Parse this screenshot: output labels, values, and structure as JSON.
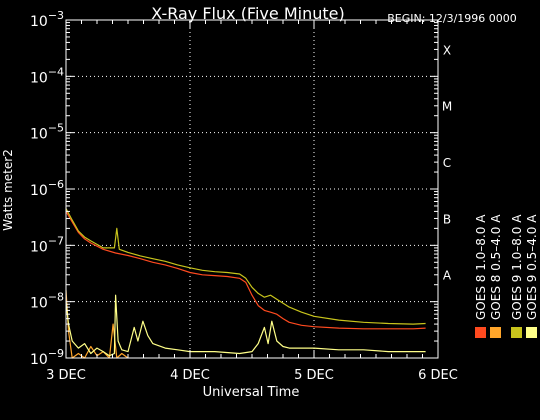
{
  "header": {
    "title": "X-Ray Flux (Five Minute)",
    "begin": "BEGIN: 12/3/1996 0000"
  },
  "colors": {
    "background": "#000000",
    "axes": "#ffffff",
    "goes8_long": "#ff4a1f",
    "goes8_short": "#ffa52a",
    "goes9_long": "#c8c41c",
    "goes9_short": "#ffff88"
  },
  "chart_data": {
    "type": "line",
    "title": "X-Ray Flux (Five Minute)",
    "xlabel": "Universal Time",
    "ylabel": "Watts meter2",
    "yscale": "log",
    "ylim": [
      1e-09,
      0.001
    ],
    "xlim": [
      3,
      6
    ],
    "x_ticks": [
      {
        "x": 3,
        "label": "3 DEC"
      },
      {
        "x": 4,
        "label": "4 DEC"
      },
      {
        "x": 5,
        "label": "5 DEC"
      },
      {
        "x": 6,
        "label": "6 DEC"
      }
    ],
    "y_ticks": [
      {
        "y": 1e-09,
        "base": "10",
        "exp": "−9"
      },
      {
        "y": 1e-08,
        "base": "10",
        "exp": "−8"
      },
      {
        "y": 1e-07,
        "base": "10",
        "exp": "−7"
      },
      {
        "y": 1e-06,
        "base": "10",
        "exp": "−6"
      },
      {
        "y": 1e-05,
        "base": "10",
        "exp": "−5"
      },
      {
        "y": 0.0001,
        "base": "10",
        "exp": "−4"
      },
      {
        "y": 0.001,
        "base": "10",
        "exp": "−3"
      }
    ],
    "flare_classes": [
      {
        "label": "A",
        "y": 1e-08
      },
      {
        "label": "B",
        "y": 1e-07
      },
      {
        "label": "C",
        "y": 1e-06
      },
      {
        "label": "M",
        "y": 1e-05
      },
      {
        "label": "X",
        "y": 0.0001
      }
    ],
    "grid": true,
    "legend_position": "right, vertical",
    "series": [
      {
        "name": "GOES 8 1.0–8.0 A",
        "color": "#ff4a1f",
        "points": [
          [
            3.0,
            4e-07
          ],
          [
            3.05,
            2.6e-07
          ],
          [
            3.1,
            1.7e-07
          ],
          [
            3.15,
            1.3e-07
          ],
          [
            3.2,
            1.1e-07
          ],
          [
            3.3,
            8.5e-08
          ],
          [
            3.4,
            7.3e-08
          ],
          [
            3.5,
            6.6e-08
          ],
          [
            3.6,
            5.8e-08
          ],
          [
            3.7,
            5e-08
          ],
          [
            3.8,
            4.5e-08
          ],
          [
            3.9,
            3.9e-08
          ],
          [
            4.0,
            3.3e-08
          ],
          [
            4.1,
            3e-08
          ],
          [
            4.2,
            2.9e-08
          ],
          [
            4.3,
            2.8e-08
          ],
          [
            4.4,
            2.6e-08
          ],
          [
            4.45,
            2.2e-08
          ],
          [
            4.5,
            1.3e-08
          ],
          [
            4.55,
            8.5e-09
          ],
          [
            4.6,
            7e-09
          ],
          [
            4.65,
            6.5e-09
          ],
          [
            4.7,
            6e-09
          ],
          [
            4.75,
            5e-09
          ],
          [
            4.8,
            4.3e-09
          ],
          [
            4.9,
            3.8e-09
          ],
          [
            5.0,
            3.6e-09
          ],
          [
            5.2,
            3.4e-09
          ],
          [
            5.4,
            3.3e-09
          ],
          [
            5.6,
            3.3e-09
          ],
          [
            5.8,
            3.3e-09
          ],
          [
            5.9,
            3.4e-09
          ]
        ]
      },
      {
        "name": "GOES 8 0.5–4.0 A",
        "color": "#ffa52a",
        "points": [
          [
            3.0,
            1.6e-08
          ],
          [
            3.02,
            3e-09
          ],
          [
            3.05,
            1e-09
          ],
          [
            3.1,
            1.2e-09
          ],
          [
            3.15,
            1e-09
          ],
          [
            3.2,
            1.6e-09
          ],
          [
            3.25,
            1.1e-09
          ],
          [
            3.3,
            1.3e-09
          ],
          [
            3.35,
            1e-09
          ],
          [
            3.38,
            4e-09
          ],
          [
            3.41,
            1e-09
          ],
          [
            3.45,
            1.2e-09
          ],
          [
            3.5,
            1e-09
          ]
        ]
      },
      {
        "name": "GOES 9 1.0–8.0 A",
        "color": "#c8c41c",
        "points": [
          [
            3.0,
            4.5e-07
          ],
          [
            3.05,
            2.8e-07
          ],
          [
            3.1,
            1.8e-07
          ],
          [
            3.15,
            1.4e-07
          ],
          [
            3.2,
            1.2e-07
          ],
          [
            3.3,
            9e-08
          ],
          [
            3.39,
            9e-08
          ],
          [
            3.41,
            2e-07
          ],
          [
            3.43,
            8.5e-08
          ],
          [
            3.5,
            7.5e-08
          ],
          [
            3.6,
            6.5e-08
          ],
          [
            3.7,
            5.8e-08
          ],
          [
            3.8,
            5.2e-08
          ],
          [
            3.9,
            4.5e-08
          ],
          [
            4.0,
            4e-08
          ],
          [
            4.1,
            3.6e-08
          ],
          [
            4.2,
            3.4e-08
          ],
          [
            4.3,
            3.3e-08
          ],
          [
            4.4,
            3.1e-08
          ],
          [
            4.45,
            2.6e-08
          ],
          [
            4.5,
            1.8e-08
          ],
          [
            4.55,
            1.4e-08
          ],
          [
            4.6,
            1.2e-08
          ],
          [
            4.65,
            1.3e-08
          ],
          [
            4.7,
            1.1e-08
          ],
          [
            4.8,
            8e-09
          ],
          [
            4.9,
            6.5e-09
          ],
          [
            5.0,
            5.5e-09
          ],
          [
            5.2,
            4.7e-09
          ],
          [
            5.4,
            4.3e-09
          ],
          [
            5.6,
            4.1e-09
          ],
          [
            5.8,
            4e-09
          ],
          [
            5.9,
            4.1e-09
          ]
        ]
      },
      {
        "name": "GOES 9 0.5–4.0 A",
        "color": "#ffff88",
        "points": [
          [
            3.0,
            1e-08
          ],
          [
            3.02,
            4e-09
          ],
          [
            3.05,
            2e-09
          ],
          [
            3.1,
            1.5e-09
          ],
          [
            3.15,
            1.8e-09
          ],
          [
            3.2,
            1.2e-09
          ],
          [
            3.25,
            1.5e-09
          ],
          [
            3.3,
            1.3e-09
          ],
          [
            3.35,
            1.1e-09
          ],
          [
            3.39,
            1.2e-09
          ],
          [
            3.4,
            1.3e-08
          ],
          [
            3.42,
            2e-09
          ],
          [
            3.45,
            1.4e-09
          ],
          [
            3.5,
            1.3e-09
          ],
          [
            3.55,
            3.5e-09
          ],
          [
            3.58,
            2e-09
          ],
          [
            3.62,
            4.5e-09
          ],
          [
            3.66,
            2.5e-09
          ],
          [
            3.7,
            1.8e-09
          ],
          [
            3.8,
            1.5e-09
          ],
          [
            3.9,
            1.4e-09
          ],
          [
            4.0,
            1.3e-09
          ],
          [
            4.2,
            1.3e-09
          ],
          [
            4.4,
            1.2e-09
          ],
          [
            4.5,
            1.3e-09
          ],
          [
            4.55,
            1.8e-09
          ],
          [
            4.6,
            3.5e-09
          ],
          [
            4.63,
            1.8e-09
          ],
          [
            4.66,
            4.5e-09
          ],
          [
            4.7,
            2e-09
          ],
          [
            4.75,
            1.6e-09
          ],
          [
            4.8,
            1.5e-09
          ],
          [
            5.0,
            1.5e-09
          ],
          [
            5.2,
            1.4e-09
          ],
          [
            5.4,
            1.4e-09
          ],
          [
            5.6,
            1.3e-09
          ],
          [
            5.8,
            1.3e-09
          ],
          [
            5.9,
            1.3e-09
          ]
        ]
      }
    ]
  }
}
